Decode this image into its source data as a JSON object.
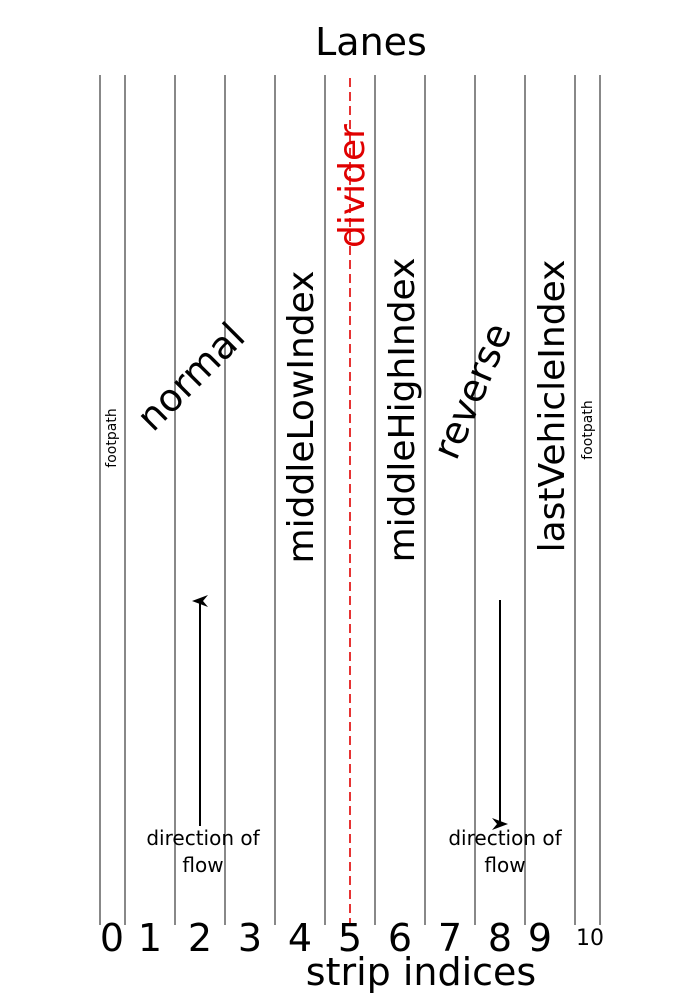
{
  "title": "Lanes",
  "xlabel": "strip indices",
  "strip_indices": [
    "0",
    "1",
    "2",
    "3",
    "4",
    "5",
    "6",
    "7",
    "8",
    "9",
    "10"
  ],
  "labels": {
    "footpath_left": "footpath",
    "footpath_right": "footpath",
    "normal": "normal",
    "reverse": "reverse",
    "middle_low": "middleLowIndex",
    "middle_high": "middleHighIndex",
    "last_vehicle": "lastVehicleIndex",
    "divider": "divider"
  },
  "flow": {
    "left_line1": "direction of",
    "left_line2": "flow",
    "right_line1": "direction of",
    "right_line2": "flow"
  },
  "colors": {
    "divider": "#e00000",
    "lines": "#555555",
    "text": "#000000"
  }
}
